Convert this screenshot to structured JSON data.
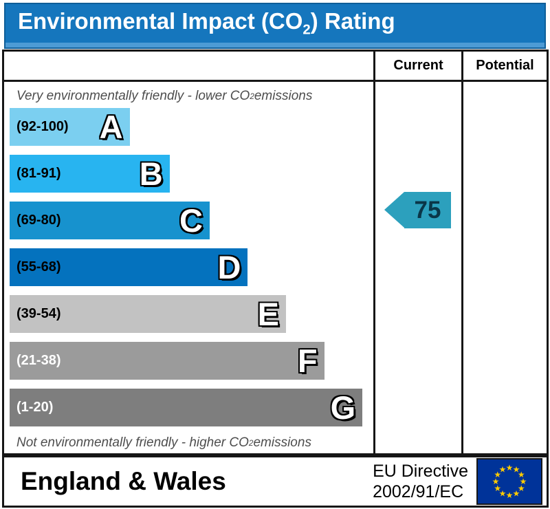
{
  "title": {
    "pre": "Environmental Impact (CO",
    "sub": "2",
    "post": ") Rating"
  },
  "columns": {
    "current": "Current",
    "potential": "Potential"
  },
  "scale_notes": {
    "top": {
      "pre": "Very environmentally friendly - lower CO",
      "sub": "2",
      "post": " emissions"
    },
    "bottom": {
      "pre": "Not environmentally friendly - higher CO",
      "sub": "2",
      "post": " emissions"
    }
  },
  "chart_data": {
    "type": "bar",
    "title": "Environmental Impact (CO2) Rating",
    "categories": [
      "A",
      "B",
      "C",
      "D",
      "E",
      "F",
      "G"
    ],
    "bands": [
      {
        "letter": "A",
        "range": "(92-100)",
        "min": 92,
        "max": 100,
        "color": "#7BCFF0",
        "range_text_color": "#000000",
        "width_pct": 33
      },
      {
        "letter": "B",
        "range": "(81-91)",
        "min": 81,
        "max": 91,
        "color": "#28B4F0",
        "range_text_color": "#000000",
        "width_pct": 44
      },
      {
        "letter": "C",
        "range": "(69-80)",
        "min": 69,
        "max": 80,
        "color": "#1792CE",
        "range_text_color": "#000000",
        "width_pct": 55
      },
      {
        "letter": "D",
        "range": "(55-68)",
        "min": 55,
        "max": 68,
        "color": "#0472BE",
        "range_text_color": "#000000",
        "width_pct": 65.5
      },
      {
        "letter": "E",
        "range": "(39-54)",
        "min": 39,
        "max": 54,
        "color": "#C2C2C2",
        "range_text_color": "#000000",
        "width_pct": 76
      },
      {
        "letter": "F",
        "range": "(21-38)",
        "min": 21,
        "max": 38,
        "color": "#9B9B9B",
        "range_text_color": "#FFFFFF",
        "width_pct": 86.5
      },
      {
        "letter": "G",
        "range": "(1-20)",
        "min": 1,
        "max": 20,
        "color": "#7E7E7E",
        "range_text_color": "#FFFFFF",
        "width_pct": 97
      }
    ],
    "current": {
      "value": 75,
      "band": "C",
      "marker_color": "#2CA0BD"
    },
    "potential": {
      "value": null
    }
  },
  "footer": {
    "region": "England & Wales",
    "directive_line1": "EU Directive",
    "directive_line2": "2002/91/EC"
  },
  "colors": {
    "title_bar": "#1576BD",
    "title_bar_edge": "#4D9BD5",
    "marker": "#2CA0BD",
    "eu_flag_blue": "#003399",
    "eu_flag_stars": "#FFCC00"
  }
}
